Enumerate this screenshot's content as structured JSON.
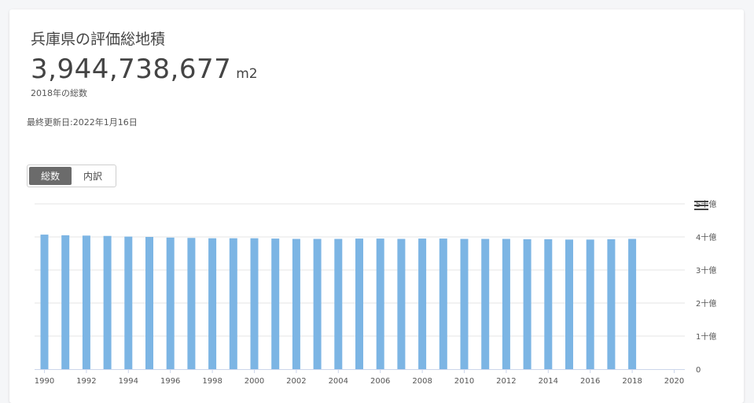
{
  "header": {
    "title": "兵庫県の評価総地積",
    "total_value": "3,944,738,677",
    "unit": "m2",
    "caption": "2018年の総数",
    "updated": "最終更新日:2022年1月16日"
  },
  "toggle": {
    "options": [
      "総数",
      "内訳"
    ],
    "selected": "総数"
  },
  "colors": {
    "bar": "#7cb5e4",
    "grid": "#e6e6e6",
    "axis": "#ccd6eb"
  },
  "icons": {
    "menu": "hamburger-menu-icon"
  },
  "chart_data": {
    "type": "bar",
    "x": [
      1990,
      1991,
      1992,
      1993,
      1994,
      1995,
      1996,
      1997,
      1998,
      1999,
      2000,
      2001,
      2002,
      2003,
      2004,
      2005,
      2006,
      2007,
      2008,
      2009,
      2010,
      2011,
      2012,
      2013,
      2014,
      2015,
      2016,
      2017,
      2018
    ],
    "values": [
      4.07,
      4.05,
      4.04,
      4.03,
      4.01,
      4.0,
      3.98,
      3.97,
      3.96,
      3.96,
      3.96,
      3.95,
      3.94,
      3.94,
      3.94,
      3.95,
      3.95,
      3.94,
      3.95,
      3.95,
      3.94,
      3.94,
      3.94,
      3.93,
      3.93,
      3.92,
      3.92,
      3.93,
      3.94
    ],
    "value_unit": "十億",
    "x_ticks": [
      "1990",
      "1992",
      "1994",
      "1996",
      "1998",
      "2000",
      "2002",
      "2004",
      "2006",
      "2008",
      "2010",
      "2012",
      "2014",
      "2016",
      "2018",
      "2020"
    ],
    "x_range": [
      1990,
      2020
    ],
    "y_ticks": [
      "0",
      "1十億",
      "2十億",
      "3十億",
      "4十億",
      "5十億"
    ],
    "ylim": [
      0,
      5
    ],
    "axis_position": "right",
    "grid": true,
    "legend": "none"
  }
}
